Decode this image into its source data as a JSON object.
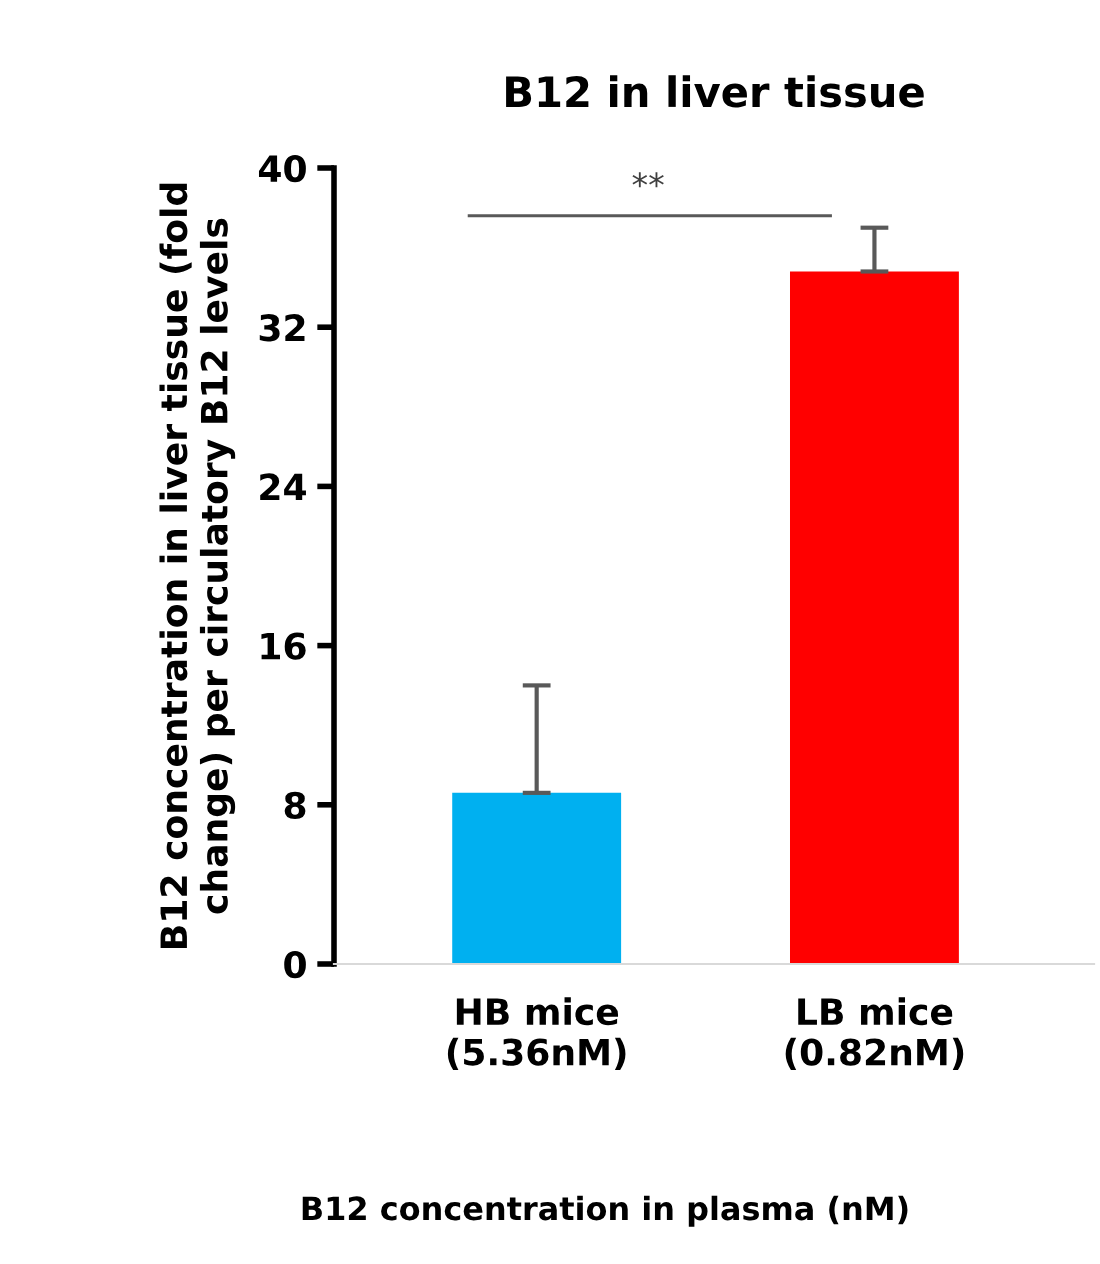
{
  "chart_data": {
    "type": "bar",
    "title": "B12 in liver tissue",
    "xlabel": "B12 concentration in plasma (nM)",
    "ylabel": "B12 concentration in liver tissue (fold\nchange) per circulatory B12 levels",
    "categories": [
      "HB mice\n(5.36nM)",
      "LB mice\n(0.82nM)"
    ],
    "values": [
      8.6,
      34.8
    ],
    "colors": [
      "#00b0f0",
      "#ff0000"
    ],
    "errors": [
      [
        8.6,
        14.0
      ],
      [
        34.8,
        37.0
      ]
    ],
    "ylim": [
      0,
      40
    ],
    "yticks": [
      0,
      8,
      16,
      24,
      32,
      40
    ],
    "grid": false,
    "legend": false,
    "annotations": [
      "**"
    ]
  }
}
